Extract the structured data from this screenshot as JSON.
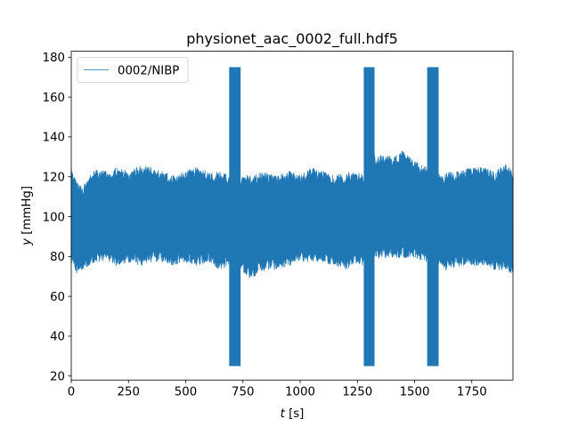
{
  "chart_data": {
    "type": "line",
    "title": "physionet_aac_0002_full.hdf5",
    "xlabel_var": "t",
    "xlabel_unit": " [s]",
    "ylabel_var": "y",
    "ylabel_unit": " [mmHg]",
    "xlim": [
      0,
      1930
    ],
    "ylim": [
      18,
      183
    ],
    "xticks": [
      0,
      250,
      500,
      750,
      1000,
      1250,
      1500,
      1750
    ],
    "yticks": [
      20,
      40,
      60,
      80,
      100,
      120,
      140,
      160,
      180
    ],
    "grid": false,
    "legend_position": "top-left",
    "color": "#1f77b4",
    "series": [
      {
        "name": "0002/NIBP",
        "envelope_x": [
          0,
          25,
          50,
          100,
          150,
          200,
          250,
          300,
          350,
          400,
          450,
          500,
          550,
          600,
          650,
          690,
          740,
          780,
          850,
          900,
          950,
          1000,
          1050,
          1100,
          1150,
          1200,
          1250,
          1278,
          1325,
          1350,
          1400,
          1450,
          1490,
          1555,
          1605,
          1620,
          1650,
          1700,
          1750,
          1800,
          1850,
          1900,
          1930
        ],
        "envelope_upper": [
          122,
          115,
          112,
          122,
          120,
          122,
          120,
          123,
          122,
          120,
          118,
          120,
          122,
          120,
          120,
          118,
          118,
          118,
          120,
          118,
          120,
          118,
          122,
          120,
          118,
          120,
          120,
          118,
          128,
          128,
          128,
          130,
          126,
          122,
          120,
          118,
          120,
          120,
          122,
          122,
          120,
          124,
          120
        ],
        "envelope_lower": [
          78,
          74,
          76,
          80,
          80,
          78,
          80,
          78,
          80,
          80,
          78,
          80,
          78,
          80,
          76,
          78,
          76,
          72,
          76,
          76,
          78,
          80,
          80,
          80,
          78,
          76,
          80,
          78,
          82,
          82,
          82,
          82,
          82,
          80,
          78,
          76,
          76,
          78,
          78,
          78,
          76,
          76,
          74
        ],
        "spikes": [
          {
            "x_start": 690,
            "x_end": 740,
            "y_min": 25,
            "y_max": 175
          },
          {
            "x_start": 1278,
            "x_end": 1325,
            "y_min": 25,
            "y_max": 175
          },
          {
            "x_start": 1555,
            "x_end": 1605,
            "y_min": 25,
            "y_max": 175
          }
        ]
      }
    ]
  }
}
